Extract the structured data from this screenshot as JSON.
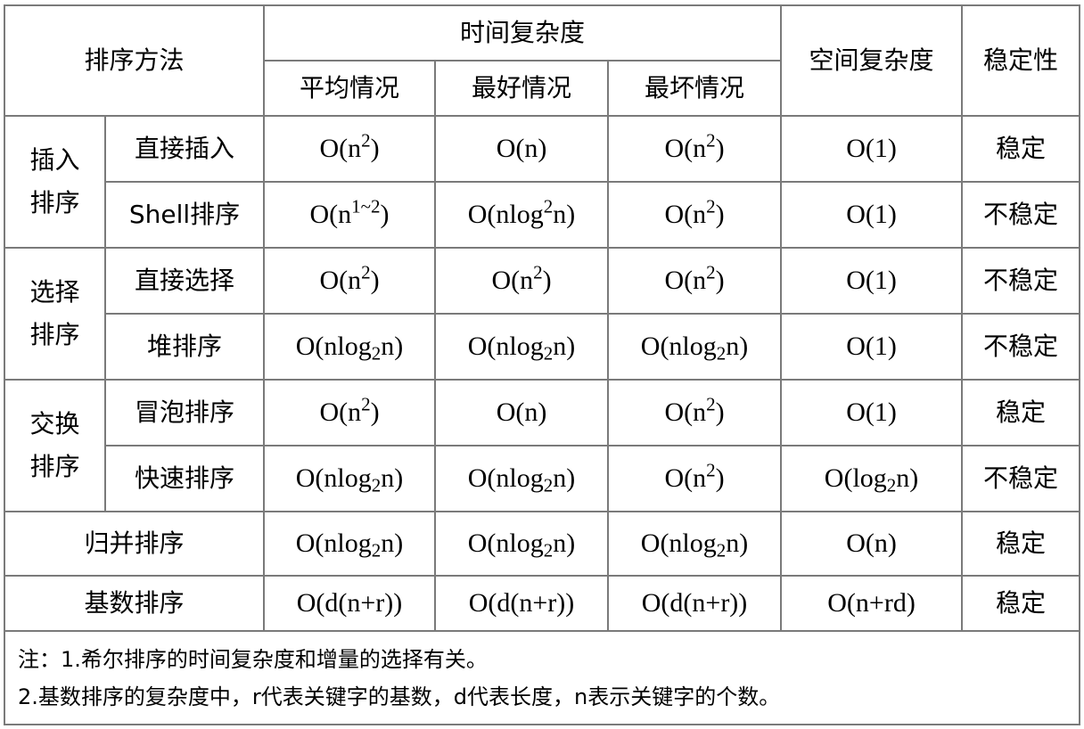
{
  "header": {
    "method": "排序方法",
    "time_complexity": "时间复杂度",
    "average": "平均情况",
    "best": "最好情况",
    "worst": "最坏情况",
    "space_complexity": "空间复杂度",
    "stability": "稳定性"
  },
  "groups": {
    "insertion": "插入排序",
    "selection": "选择排序",
    "exchange": "交换排序"
  },
  "rows": {
    "direct_insertion": {
      "name": "直接插入",
      "space": "O(1)",
      "stability": "稳定"
    },
    "shell": {
      "name": "Shell排序",
      "space": "O(1)",
      "stability": "不稳定"
    },
    "direct_selection": {
      "name": "直接选择",
      "space": "O(1)",
      "stability": "不稳定"
    },
    "heap": {
      "name": "堆排序",
      "space": "O(1)",
      "stability": "不稳定"
    },
    "bubble": {
      "name": "冒泡排序",
      "space": "O(1)",
      "stability": "稳定"
    },
    "quick": {
      "name": "快速排序",
      "stability": "不稳定"
    },
    "merge": {
      "name": "归并排序",
      "space": "O(n)",
      "stability": "稳定"
    },
    "radix": {
      "name": "基数排序",
      "average": "O(d(n+r))",
      "best": "O(d(n+r))",
      "worst": "O(d(n+r))",
      "space": "O(n+rd)",
      "stability": "稳定"
    }
  },
  "formula": {
    "on_open": "O(n",
    "close": ")",
    "sq": "2",
    "on": "O(n)",
    "shell_exp": "1~2",
    "onlog_open": "O(nlog",
    "n_close": "n)",
    "olog_open": "O(log",
    "base": "2"
  },
  "notes": [
    "注：1.希尔排序的时间复杂度和增量的选择有关。",
    "2.基数排序的复杂度中，r代表关键字的基数，d代表长度，n表示关键字的个数。"
  ]
}
